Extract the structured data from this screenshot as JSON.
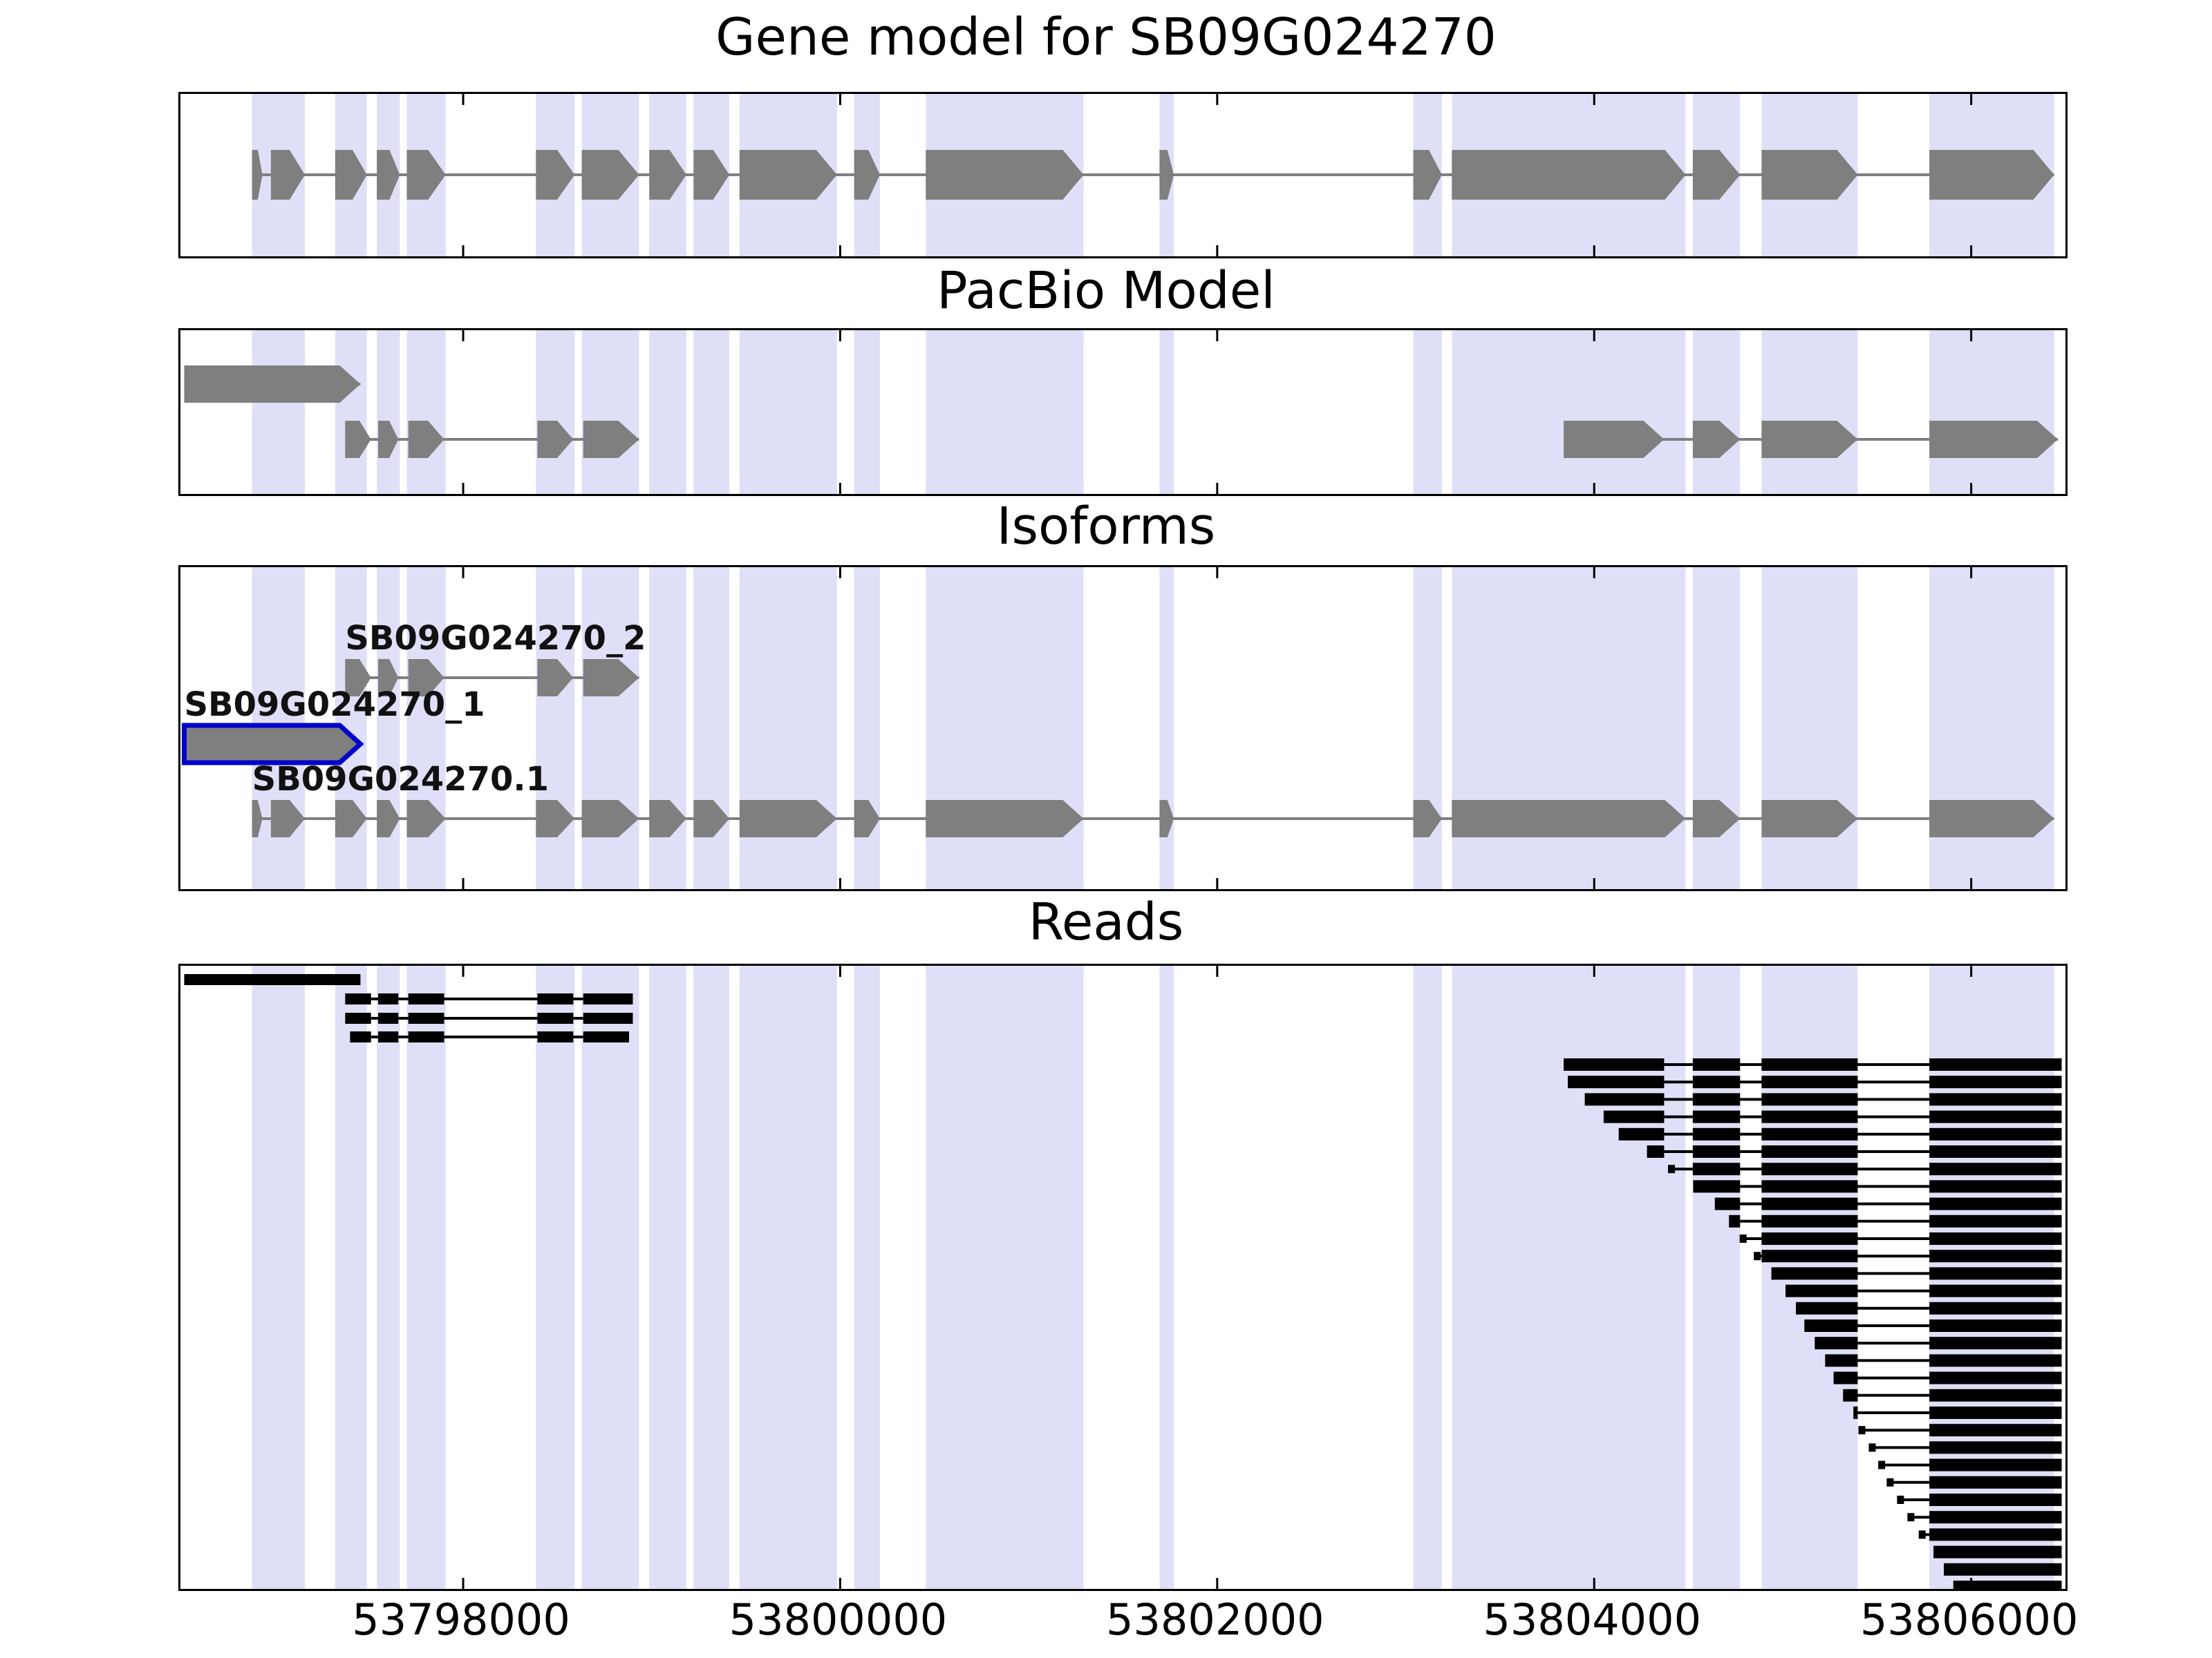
{
  "colors": {
    "exon": "#7f7f7f",
    "intron": "#7f7f7f",
    "highlight": "#dfdff7",
    "read": "#000000",
    "selected_outline": "#0000cd",
    "panel_border": "#000000"
  },
  "chart_data": {
    "type": "genome-browser",
    "title": "Gene model for SB09G024270",
    "x_axis": {
      "range": [
        53796500,
        53806500
      ],
      "ticks": [
        53798000,
        53800000,
        53802000,
        53804000,
        53806000
      ],
      "tick_labels": [
        "53798000",
        "53800000",
        "53802000",
        "53804000",
        "53806000"
      ]
    },
    "highlight_regions": [
      [
        53796880,
        53797160
      ],
      [
        53797321,
        53797489
      ],
      [
        53797542,
        53797664
      ],
      [
        53797701,
        53797907
      ],
      [
        53798386,
        53798591
      ],
      [
        53798629,
        53798933
      ],
      [
        53798987,
        53799184
      ],
      [
        53799222,
        53799412
      ],
      [
        53799466,
        53799983
      ],
      [
        53800074,
        53800211
      ],
      [
        53800454,
        53801291
      ],
      [
        53801694,
        53801770
      ],
      [
        53803040,
        53803192
      ],
      [
        53803245,
        53804485
      ],
      [
        53804523,
        53804774
      ],
      [
        53804888,
        53805398
      ],
      [
        53805778,
        53806440
      ]
    ],
    "panels": {
      "gene_model": {
        "title": "Gene model for SB09G024270",
        "transcripts": [
          {
            "id": "SB09G024270",
            "strand": "+",
            "selected": false,
            "exons": [
              [
                53796880,
                53796935
              ],
              [
                53796980,
                53797160
              ],
              [
                53797321,
                53797489
              ],
              [
                53797542,
                53797664
              ],
              [
                53797701,
                53797907
              ],
              [
                53798386,
                53798591
              ],
              [
                53798629,
                53798933
              ],
              [
                53798987,
                53799184
              ],
              [
                53799222,
                53799412
              ],
              [
                53799466,
                53799983
              ],
              [
                53800074,
                53800211
              ],
              [
                53800454,
                53801291
              ],
              [
                53801694,
                53801770
              ],
              [
                53803040,
                53803192
              ],
              [
                53803245,
                53804485
              ],
              [
                53804523,
                53804774
              ],
              [
                53804888,
                53805398
              ],
              [
                53805778,
                53806440
              ]
            ]
          }
        ]
      },
      "pacbio": {
        "title": "PacBio Model",
        "transcripts": [
          {
            "id": "pacbio-isoform-a",
            "strand": "+",
            "row": 0,
            "selected": false,
            "exons": [
              [
                53796520,
                53797455
              ]
            ]
          },
          {
            "id": "pacbio-isoform-b",
            "strand": "+",
            "row": 1,
            "selected": false,
            "exons": [
              [
                53797374,
                53797511
              ],
              [
                53797549,
                53797656
              ],
              [
                53797709,
                53797899
              ],
              [
                53798394,
                53798584
              ],
              [
                53798637,
                53798933
              ]
            ]
          },
          {
            "id": "pacbio-isoform-c",
            "strand": "+",
            "row": 1,
            "selected": false,
            "exons": [
              [
                53803838,
                53804371
              ],
              [
                53804523,
                53804774
              ],
              [
                53804888,
                53805398
              ],
              [
                53805778,
                53806460
              ]
            ]
          }
        ]
      },
      "isoforms": {
        "title": "Isoforms",
        "transcripts": [
          {
            "id": "SB09G024270_2",
            "label": "SB09G024270_2",
            "strand": "+",
            "row": 0,
            "selected": false,
            "exons": [
              [
                53797374,
                53797511
              ],
              [
                53797549,
                53797656
              ],
              [
                53797709,
                53797899
              ],
              [
                53798394,
                53798584
              ],
              [
                53798637,
                53798933
              ]
            ]
          },
          {
            "id": "SB09G024270_1",
            "label": "SB09G024270_1",
            "strand": "+",
            "row": 1,
            "selected": true,
            "exons": [
              [
                53796520,
                53797455
              ]
            ]
          },
          {
            "id": "SB09G024270.1",
            "label": "SB09G024270.1",
            "strand": "+",
            "row": 2,
            "selected": false,
            "exons": [
              [
                53796880,
                53796935
              ],
              [
                53796980,
                53797160
              ],
              [
                53797321,
                53797489
              ],
              [
                53797542,
                53797664
              ],
              [
                53797701,
                53797907
              ],
              [
                53798386,
                53798591
              ],
              [
                53798629,
                53798933
              ],
              [
                53798987,
                53799184
              ],
              [
                53799222,
                53799412
              ],
              [
                53799466,
                53799983
              ],
              [
                53800074,
                53800211
              ],
              [
                53800454,
                53801291
              ],
              [
                53801694,
                53801770
              ],
              [
                53803040,
                53803192
              ],
              [
                53803245,
                53804485
              ],
              [
                53804523,
                53804774
              ],
              [
                53804888,
                53805398
              ],
              [
                53805778,
                53806440
              ]
            ]
          }
        ]
      },
      "reads": {
        "title": "Reads",
        "left_reads": [
          {
            "blocks": [
              [
                53796520,
                53797455
              ]
            ]
          },
          {
            "blocks": [
              [
                53797374,
                53797511
              ],
              [
                53797549,
                53797656
              ],
              [
                53797709,
                53797899
              ],
              [
                53798394,
                53798584
              ],
              [
                53798637,
                53798900
              ]
            ]
          },
          {
            "blocks": [
              [
                53797374,
                53797511
              ],
              [
                53797549,
                53797656
              ],
              [
                53797709,
                53797899
              ],
              [
                53798394,
                53798584
              ],
              [
                53798637,
                53798900
              ]
            ]
          },
          {
            "blocks": [
              [
                53797400,
                53797511
              ],
              [
                53797549,
                53797656
              ],
              [
                53797709,
                53797899
              ],
              [
                53798394,
                53798584
              ],
              [
                53798637,
                53798880
              ]
            ]
          }
        ],
        "right_reads": {
          "block_template": [
            [
              53803838,
              53804371
            ],
            [
              53804523,
              53804774
            ],
            [
              53804888,
              53805398
            ],
            [
              53805778,
              53806480
            ]
          ],
          "starts": [
            53803838,
            53803860,
            53803950,
            53804050,
            53804130,
            53804280,
            53804410,
            53804525,
            53804640,
            53804715,
            53804790,
            53804865,
            53804940,
            53805015,
            53805070,
            53805115,
            53805170,
            53805225,
            53805270,
            53805320,
            53805375,
            53805420,
            53805475,
            53805525,
            53805570,
            53805625,
            53805680,
            53805740,
            53805800,
            53805855,
            53805905
          ]
        }
      }
    }
  }
}
